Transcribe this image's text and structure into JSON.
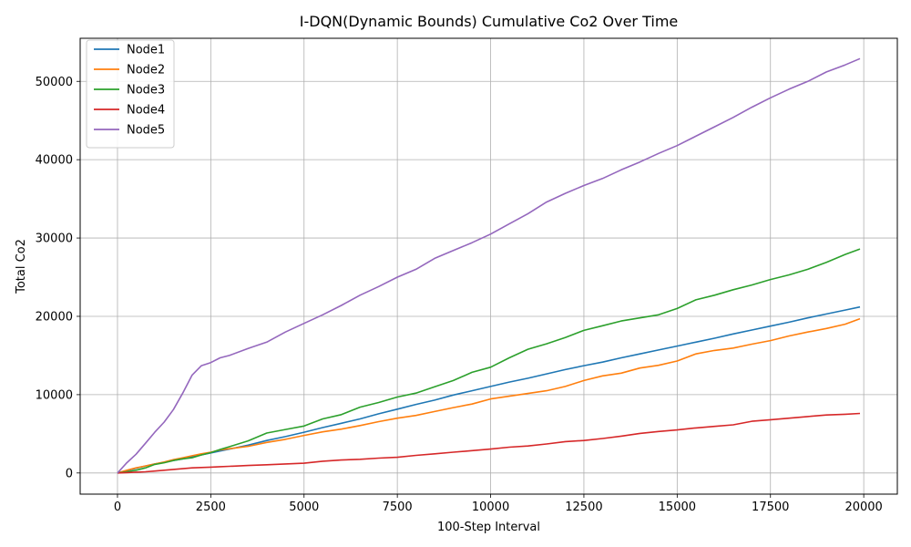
{
  "chart_data": {
    "type": "line",
    "title": "I-DQN(Dynamic Bounds) Cumulative Co2 Over Time",
    "xlabel": "100-Step Interval",
    "ylabel": "Total Co2",
    "xlim": [
      -1000,
      20900
    ],
    "ylim": [
      -2700,
      55500
    ],
    "xticks": [
      0,
      2500,
      5000,
      7500,
      10000,
      12500,
      15000,
      17500,
      20000
    ],
    "yticks": [
      0,
      10000,
      20000,
      30000,
      40000,
      50000
    ],
    "grid": true,
    "legend_position": "top-left",
    "x": [
      0,
      250,
      500,
      750,
      1000,
      1250,
      1500,
      1750,
      2000,
      2250,
      2500,
      2750,
      3000,
      3500,
      4000,
      4500,
      5000,
      5500,
      6000,
      6500,
      7000,
      7500,
      8000,
      8500,
      9000,
      9500,
      10000,
      10500,
      11000,
      11500,
      12000,
      12500,
      13000,
      13500,
      14000,
      14500,
      15000,
      15500,
      16000,
      16500,
      17000,
      17500,
      18000,
      18500,
      19000,
      19500,
      19900
    ],
    "series": [
      {
        "name": "Node1",
        "color": "#1f77b4",
        "values": [
          0,
          300,
          600,
          900,
          1150,
          1350,
          1600,
          1800,
          2050,
          2300,
          2550,
          2800,
          3050,
          3550,
          4150,
          4650,
          5200,
          5800,
          6350,
          6900,
          7550,
          8150,
          8750,
          9300,
          9950,
          10500,
          11050,
          11600,
          12100,
          12650,
          13200,
          13700,
          14150,
          14700,
          15200,
          15700,
          16200,
          16700,
          17200,
          17750,
          18250,
          18750,
          19250,
          19800,
          20300,
          20800,
          21200
        ]
      },
      {
        "name": "Node2",
        "color": "#ff7f0e",
        "values": [
          0,
          350,
          650,
          900,
          1150,
          1400,
          1700,
          1950,
          2200,
          2450,
          2650,
          2950,
          3100,
          3400,
          3900,
          4300,
          4800,
          5250,
          5600,
          6050,
          6550,
          7000,
          7350,
          7850,
          8350,
          8800,
          9450,
          9800,
          10150,
          10500,
          11050,
          11800,
          12400,
          12750,
          13400,
          13750,
          14300,
          15200,
          15650,
          15950,
          16450,
          16900,
          17500,
          18000,
          18450,
          19000,
          19700
        ]
      },
      {
        "name": "Node3",
        "color": "#2ca02c",
        "values": [
          0,
          150,
          350,
          650,
          1100,
          1300,
          1600,
          1800,
          1950,
          2300,
          2600,
          3000,
          3350,
          4100,
          5100,
          5550,
          6000,
          6900,
          7450,
          8400,
          9000,
          9700,
          10200,
          11000,
          11800,
          12850,
          13500,
          14700,
          15800,
          16500,
          17300,
          18200,
          18800,
          19400,
          19800,
          20200,
          21000,
          22100,
          22700,
          23400,
          24000,
          24700,
          25300,
          26000,
          26900,
          27900,
          28600
        ]
      },
      {
        "name": "Node4",
        "color": "#d62728",
        "values": [
          0,
          50,
          100,
          150,
          250,
          350,
          450,
          550,
          650,
          700,
          750,
          800,
          850,
          950,
          1050,
          1150,
          1250,
          1500,
          1650,
          1750,
          1900,
          2000,
          2250,
          2450,
          2650,
          2850,
          3050,
          3300,
          3450,
          3700,
          4000,
          4150,
          4400,
          4700,
          5050,
          5300,
          5500,
          5750,
          5950,
          6150,
          6600,
          6800,
          7000,
          7200,
          7400,
          7500,
          7600
        ]
      },
      {
        "name": "Node5",
        "color": "#9467bd",
        "values": [
          0,
          1300,
          2400,
          3800,
          5200,
          6500,
          8100,
          10200,
          12500,
          13700,
          14100,
          14700,
          15000,
          15900,
          16700,
          18000,
          19100,
          20200,
          21400,
          22700,
          23800,
          25000,
          26000,
          27400,
          28400,
          29400,
          30500,
          31800,
          33100,
          34600,
          35700,
          36700,
          37600,
          38700,
          39700,
          40800,
          41800,
          43000,
          44200,
          45400,
          46700,
          47900,
          49000,
          50000,
          51200,
          52100,
          52900
        ]
      }
    ]
  }
}
